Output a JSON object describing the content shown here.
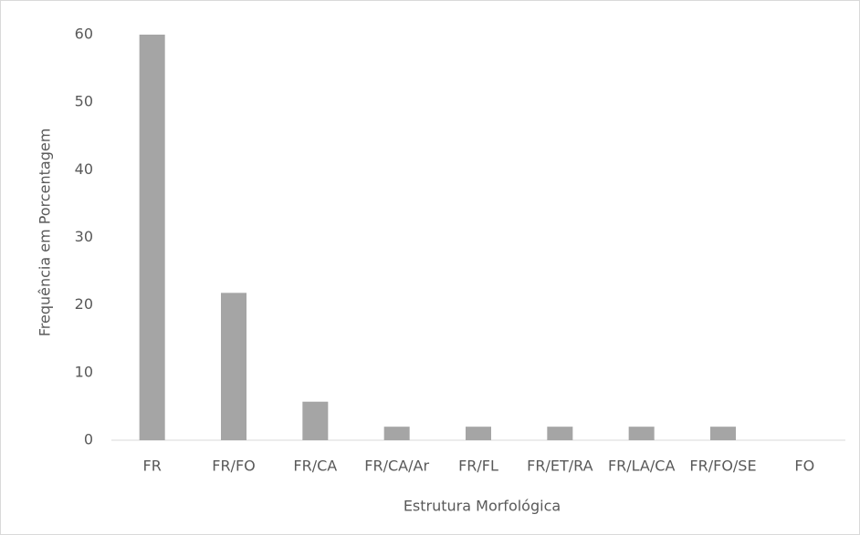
{
  "chart_data": {
    "type": "bar",
    "x_label": "Estrutura Morfológica",
    "y_label": "Frequência em Porcentagem",
    "categories": [
      "FR",
      "FR/FO",
      "FR/CA",
      "FR/CA/Ar",
      "FR/FL",
      "FR/ET/RA",
      "FR/LA/CA",
      "FR/FO/SE",
      "FO"
    ],
    "values": [
      60,
      21.8,
      5.7,
      2,
      2,
      2,
      2,
      2,
      0
    ],
    "color": "#a5a5a5",
    "ylim": [
      0,
      60
    ],
    "yticks": [
      0,
      10,
      20,
      30,
      40,
      50,
      60
    ],
    "grid": false
  }
}
